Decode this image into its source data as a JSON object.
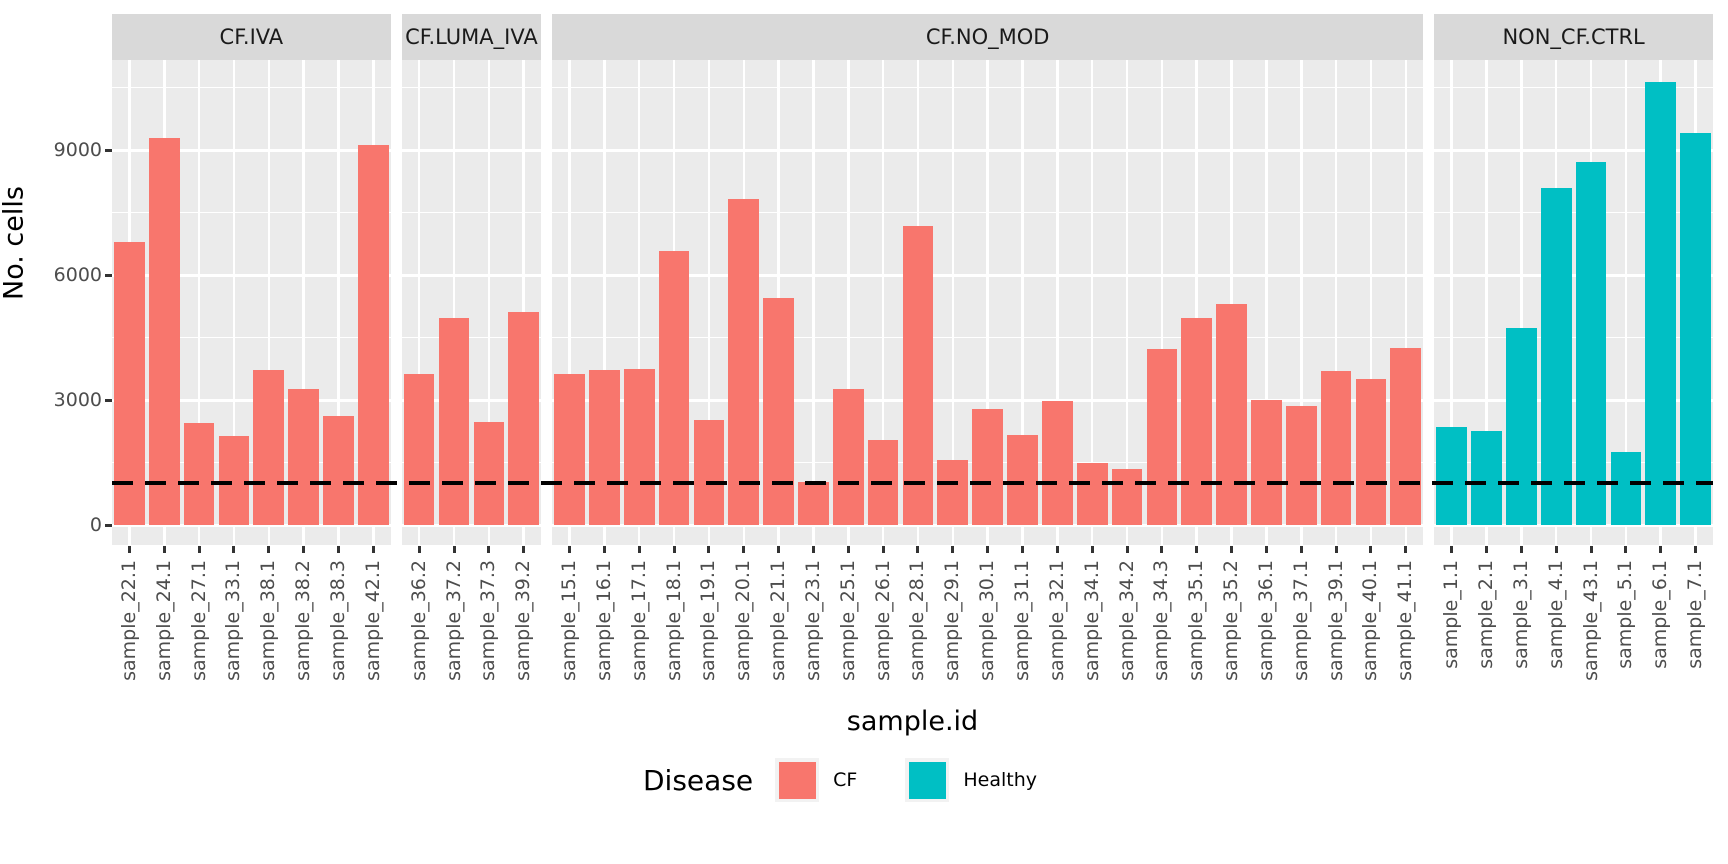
{
  "chart_data": {
    "type": "bar",
    "title": "",
    "xlabel": "sample.id",
    "ylabel": "No. cells",
    "y_ticks": [
      0,
      3000,
      6000,
      9000
    ],
    "y_minor_ticks": [
      1500,
      4500,
      7500,
      10500
    ],
    "ylim": [
      -480,
      11160
    ],
    "grid": true,
    "hline": {
      "value": 1000,
      "style": "dashed",
      "color": "#000000"
    },
    "legend": {
      "title": "Disease",
      "position": "bottom",
      "entries": [
        {
          "label": "CF",
          "color": "#F8766D"
        },
        {
          "label": "Healthy",
          "color": "#00BFC4"
        }
      ]
    },
    "facets": [
      {
        "label": "CF.IVA",
        "group": "CF",
        "bars": [
          {
            "sample": "sample_22.1",
            "value": 6800
          },
          {
            "sample": "sample_24.1",
            "value": 9300
          },
          {
            "sample": "sample_27.1",
            "value": 2460
          },
          {
            "sample": "sample_33.1",
            "value": 2140
          },
          {
            "sample": "sample_38.1",
            "value": 3720
          },
          {
            "sample": "sample_38.2",
            "value": 3270
          },
          {
            "sample": "sample_38.3",
            "value": 2620
          },
          {
            "sample": "sample_42.1",
            "value": 9130
          }
        ]
      },
      {
        "label": "CF.LUMA_IVA",
        "group": "CF",
        "bars": [
          {
            "sample": "sample_36.2",
            "value": 3620
          },
          {
            "sample": "sample_37.2",
            "value": 4960
          },
          {
            "sample": "sample_37.3",
            "value": 2480
          },
          {
            "sample": "sample_39.2",
            "value": 5120
          }
        ]
      },
      {
        "label": "CF.NO_MOD",
        "group": "CF",
        "bars": [
          {
            "sample": "sample_15.1",
            "value": 3630
          },
          {
            "sample": "sample_16.1",
            "value": 3720
          },
          {
            "sample": "sample_17.1",
            "value": 3750
          },
          {
            "sample": "sample_18.1",
            "value": 6570
          },
          {
            "sample": "sample_19.1",
            "value": 2520
          },
          {
            "sample": "sample_20.1",
            "value": 7820
          },
          {
            "sample": "sample_21.1",
            "value": 5460
          },
          {
            "sample": "sample_23.1",
            "value": 1030
          },
          {
            "sample": "sample_25.1",
            "value": 3270
          },
          {
            "sample": "sample_26.1",
            "value": 2040
          },
          {
            "sample": "sample_28.1",
            "value": 7180
          },
          {
            "sample": "sample_29.1",
            "value": 1560
          },
          {
            "sample": "sample_30.1",
            "value": 2780
          },
          {
            "sample": "sample_31.1",
            "value": 2160
          },
          {
            "sample": "sample_32.1",
            "value": 2980
          },
          {
            "sample": "sample_34.1",
            "value": 1500
          },
          {
            "sample": "sample_34.2",
            "value": 1350
          },
          {
            "sample": "sample_34.3",
            "value": 4220
          },
          {
            "sample": "sample_35.1",
            "value": 4980
          },
          {
            "sample": "sample_35.2",
            "value": 5300
          },
          {
            "sample": "sample_36.1",
            "value": 2990
          },
          {
            "sample": "sample_37.1",
            "value": 2860
          },
          {
            "sample": "sample_39.1",
            "value": 3700
          },
          {
            "sample": "sample_40.1",
            "value": 3500
          },
          {
            "sample": "sample_41.1",
            "value": 4240
          }
        ]
      },
      {
        "label": "NON_CF.CTRL",
        "group": "Healthy",
        "bars": [
          {
            "sample": "sample_1.1",
            "value": 2360
          },
          {
            "sample": "sample_2.1",
            "value": 2260
          },
          {
            "sample": "sample_3.1",
            "value": 4720
          },
          {
            "sample": "sample_4.1",
            "value": 8100
          },
          {
            "sample": "sample_43.1",
            "value": 8720
          },
          {
            "sample": "sample_5.1",
            "value": 1750
          },
          {
            "sample": "sample_6.1",
            "value": 10640
          },
          {
            "sample": "sample_7.1",
            "value": 9420
          }
        ]
      }
    ]
  },
  "colors": {
    "cf": "#F8766D",
    "healthy": "#00BFC4",
    "panel_background": "#EBEBEB",
    "strip_background": "#D9D9D9",
    "gridline": "#FFFFFF",
    "axis_text": "#4D4D4D",
    "dashed_line": "#000000"
  }
}
